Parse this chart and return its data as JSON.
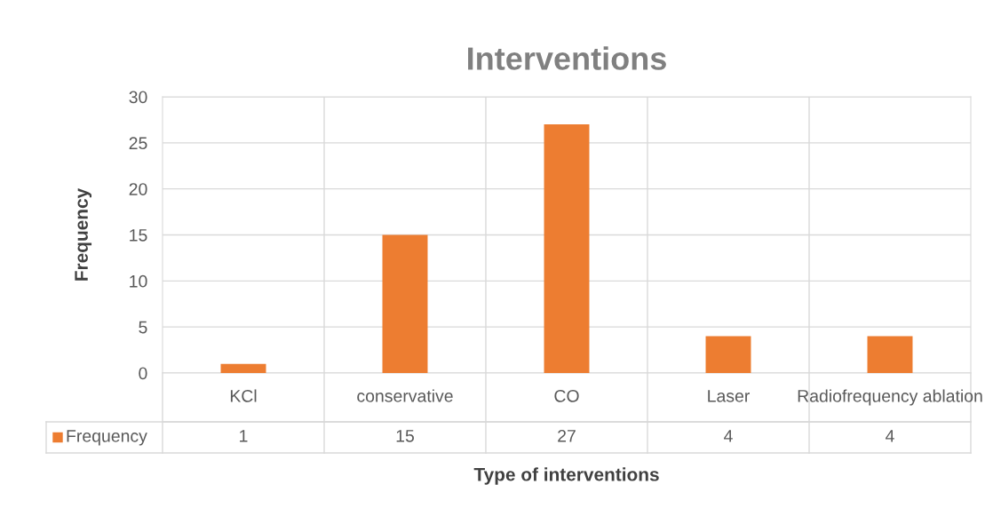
{
  "chart_data": {
    "type": "bar",
    "title": "Interventions",
    "xlabel": "Type of interventions",
    "ylabel": "Frequency",
    "categories": [
      "KCl",
      "conservative",
      "CO",
      "Laser",
      "Radiofrequency ablation"
    ],
    "series": [
      {
        "name": "Frequency",
        "color": "#ed7d31",
        "values": [
          1,
          15,
          27,
          4,
          4
        ]
      }
    ],
    "ylim": [
      0,
      30
    ],
    "yticks": [
      0,
      5,
      10,
      15,
      20,
      25,
      30
    ],
    "grid": true,
    "data_labels": true,
    "legend": "bottom left"
  }
}
